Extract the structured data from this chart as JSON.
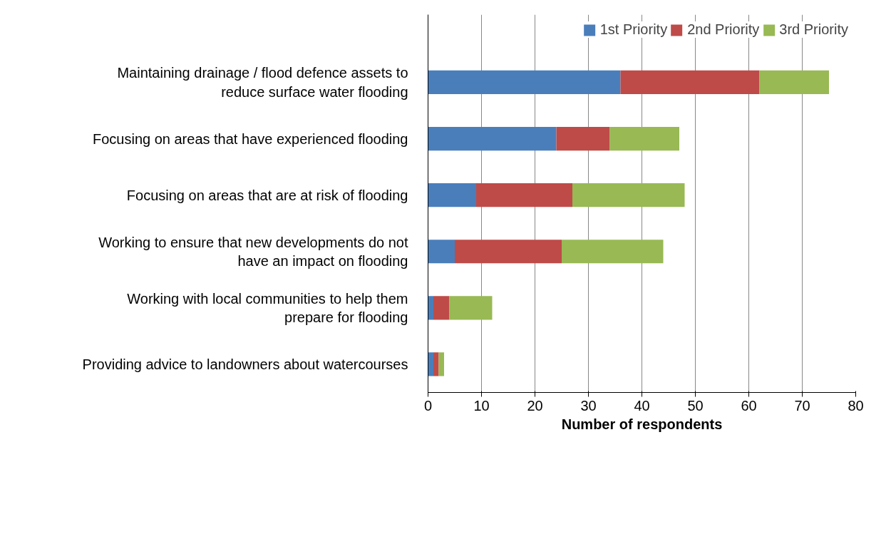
{
  "chart_data": {
    "type": "bar",
    "orientation": "horizontal",
    "stacked": true,
    "xlabel": "Number of respondents",
    "categories": [
      "Maintaining drainage / flood defence assets to reduce surface water flooding",
      "Focusing on areas that have experienced flooding",
      "Focusing on areas that are at risk of flooding",
      "Working to ensure that new developments do not have an impact on flooding",
      "Working with local communities to help them prepare for flooding",
      "Providing advice to landowners about watercourses"
    ],
    "series": [
      {
        "name": "1st Priority",
        "color": "#4a7ebb",
        "values": [
          36,
          24,
          9,
          5,
          1,
          1
        ]
      },
      {
        "name": "2nd Priority",
        "color": "#be4b48",
        "values": [
          26,
          10,
          18,
          20,
          3,
          1
        ]
      },
      {
        "name": "3rd Priority",
        "color": "#98b954",
        "values": [
          13,
          13,
          21,
          19,
          8,
          1
        ]
      }
    ],
    "xlim": [
      0,
      80
    ],
    "xticks": [
      0,
      10,
      20,
      30,
      40,
      50,
      60,
      70,
      80
    ],
    "grid": "x",
    "legend": "top right"
  }
}
